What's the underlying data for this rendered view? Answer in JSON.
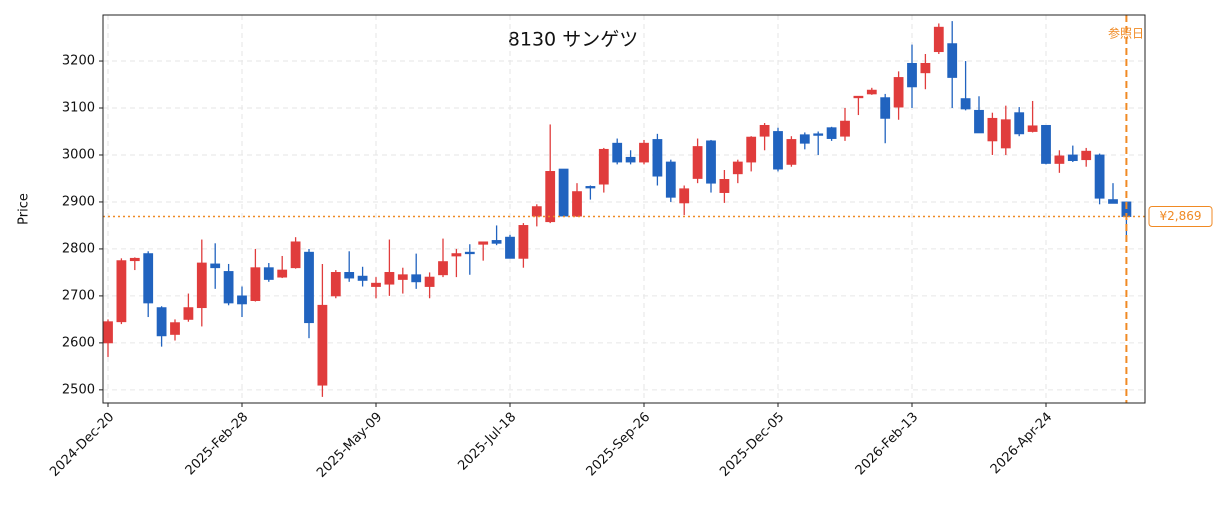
{
  "chart_data": {
    "type": "candlestick",
    "title": "8130  サンゲツ",
    "y_label": "Price",
    "x": [
      "2024-Dec-20",
      "2024-Dec-27",
      "2025-Jan-03",
      "2025-Jan-10",
      "2025-Jan-17",
      "2025-Jan-24",
      "2025-Jan-31",
      "2025-Feb-07",
      "2025-Feb-14",
      "2025-Feb-21",
      "2025-Feb-28",
      "2025-Mar-07",
      "2025-Mar-14",
      "2025-Mar-21",
      "2025-Mar-28",
      "2025-Apr-04",
      "2025-Apr-11",
      "2025-Apr-18",
      "2025-Apr-25",
      "2025-May-02",
      "2025-May-09",
      "2025-May-16",
      "2025-May-23",
      "2025-May-30",
      "2025-Jun-06",
      "2025-Jun-13",
      "2025-Jun-20",
      "2025-Jun-27",
      "2025-Jul-04",
      "2025-Jul-11",
      "2025-Jul-18",
      "2025-Jul-25",
      "2025-Aug-01",
      "2025-Aug-08",
      "2025-Aug-15",
      "2025-Aug-22",
      "2025-Aug-29",
      "2025-Sep-05",
      "2025-Sep-12",
      "2025-Sep-19",
      "2025-Sep-26",
      "2025-Oct-03",
      "2025-Oct-10",
      "2025-Oct-17",
      "2025-Oct-24",
      "2025-Oct-31",
      "2025-Nov-07",
      "2025-Nov-14",
      "2025-Nov-21",
      "2025-Nov-28",
      "2025-Dec-05",
      "2025-Dec-12",
      "2025-Dec-19",
      "2025-Dec-26",
      "2026-Jan-02",
      "2026-Jan-09",
      "2026-Jan-16",
      "2026-Jan-23",
      "2026-Jan-30",
      "2026-Feb-06",
      "2026-Feb-13",
      "2026-Feb-20",
      "2026-Feb-27",
      "2026-Mar-06",
      "2026-Mar-13",
      "2026-Mar-20",
      "2026-Mar-27",
      "2026-Apr-03",
      "2026-Apr-10",
      "2026-Apr-17",
      "2026-Apr-24",
      "2026-May-01",
      "2026-May-08",
      "2026-May-15",
      "2026-May-22",
      "2026-May-29",
      "2026-Jun-05"
    ],
    "open": [
      2600,
      2645,
      2775,
      2790,
      2675,
      2618,
      2650,
      2675,
      2768,
      2752,
      2700,
      2690,
      2760,
      2740,
      2760,
      2793,
      2510,
      2700,
      2750,
      2742,
      2720,
      2725,
      2735,
      2745,
      2720,
      2745,
      2785,
      2793,
      2810,
      2818,
      2825,
      2780,
      2870,
      2858,
      2970,
      2870,
      2933,
      2938,
      3025,
      2995,
      2985,
      3033,
      2985,
      2898,
      2950,
      3030,
      2920,
      2960,
      2985,
      3040,
      3050,
      2980,
      3043,
      3045,
      3058,
      3040,
      3122,
      3130,
      3122,
      3102,
      3195,
      3175,
      3220,
      3237,
      3120,
      3095,
      3030,
      3015,
      3090,
      3050,
      3063,
      2982,
      3000,
      2990,
      3000,
      2905,
      2900
    ],
    "high": [
      2650,
      2780,
      2782,
      2795,
      2678,
      2650,
      2705,
      2820,
      2812,
      2768,
      2720,
      2800,
      2770,
      2785,
      2825,
      2800,
      2768,
      2755,
      2795,
      2762,
      2740,
      2820,
      2760,
      2790,
      2750,
      2822,
      2800,
      2810,
      2815,
      2850,
      2830,
      2855,
      2895,
      3065,
      2970,
      2940,
      2935,
      3015,
      3035,
      3010,
      3032,
      3045,
      2990,
      2935,
      3035,
      3032,
      2968,
      2990,
      3040,
      3068,
      3058,
      3040,
      3048,
      3050,
      3060,
      3100,
      3125,
      3143,
      3130,
      3178,
      3235,
      3215,
      3280,
      3285,
      3200,
      3125,
      3090,
      3105,
      3102,
      3115,
      3063,
      3010,
      3020,
      3015,
      3003,
      2940,
      2900
    ],
    "low": [
      2570,
      2640,
      2755,
      2655,
      2592,
      2605,
      2645,
      2635,
      2715,
      2680,
      2655,
      2688,
      2730,
      2738,
      2758,
      2610,
      2485,
      2695,
      2730,
      2720,
      2695,
      2700,
      2705,
      2715,
      2695,
      2740,
      2740,
      2745,
      2775,
      2808,
      2780,
      2760,
      2848,
      2855,
      2870,
      2868,
      2905,
      2920,
      2980,
      2980,
      2980,
      2935,
      2900,
      2872,
      2940,
      2920,
      2898,
      2940,
      2965,
      3010,
      2965,
      2975,
      3012,
      3000,
      3030,
      3030,
      3085,
      3128,
      3025,
      3075,
      3100,
      3140,
      3215,
      3100,
      3095,
      3048,
      3000,
      3000,
      3040,
      3048,
      2980,
      2962,
      2985,
      2975,
      2895,
      2898,
      2818
    ],
    "close": [
      2645,
      2775,
      2780,
      2685,
      2615,
      2643,
      2675,
      2770,
      2760,
      2685,
      2683,
      2760,
      2735,
      2755,
      2815,
      2643,
      2680,
      2750,
      2738,
      2733,
      2727,
      2750,
      2745,
      2730,
      2740,
      2773,
      2790,
      2790,
      2815,
      2812,
      2780,
      2850,
      2890,
      2965,
      2870,
      2922,
      2930,
      3012,
      2985,
      2985,
      3025,
      2955,
      2910,
      2928,
      3018,
      2940,
      2948,
      2985,
      3038,
      3063,
      2970,
      3033,
      3025,
      3042,
      3035,
      3072,
      3125,
      3138,
      3078,
      3165,
      3145,
      3195,
      3272,
      3165,
      3098,
      3047,
      3078,
      3075,
      3045,
      3062,
      2982,
      2998,
      2988,
      3008,
      2908,
      2897,
      2869
    ],
    "up_color": "#e03c3c",
    "down_color": "#2163bf",
    "ylim": [
      2472,
      3298
    ],
    "yticks": [
      2500,
      2600,
      2700,
      2800,
      2900,
      3000,
      3100,
      3200
    ],
    "xticks": [
      "2024-Dec-20",
      "2025-Feb-28",
      "2025-May-09",
      "2025-Jul-18",
      "2025-Sep-26",
      "2025-Dec-05",
      "2026-Feb-13",
      "2026-Apr-24"
    ],
    "grid": true,
    "last_price": {
      "value": 2869,
      "label": "¥2,869"
    },
    "reference_date": "2026-Jun-05",
    "reference_label": "参照日",
    "marker_color": "#f08a24"
  }
}
